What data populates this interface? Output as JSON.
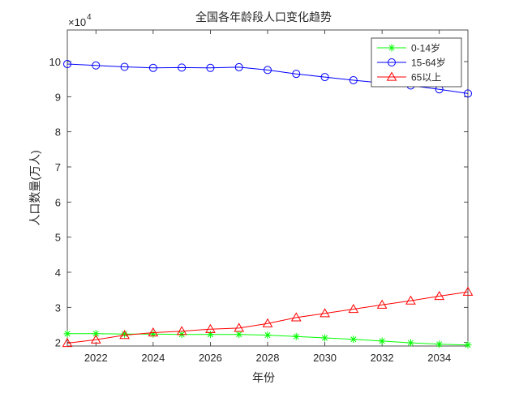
{
  "chart_data": {
    "type": "line",
    "title": "全国各年龄段人口变化趋势",
    "xlabel": "年份",
    "ylabel": "人口数量(万人)",
    "y_exponent_label": {
      "base": "×10",
      "exponent": "4"
    },
    "xlim": [
      2021,
      2035
    ],
    "ylim": [
      1.9,
      10.9
    ],
    "xticks": [
      2022,
      2024,
      2026,
      2028,
      2030,
      2032,
      2034
    ],
    "xtick_labels": [
      "2022",
      "2024",
      "2026",
      "2028",
      "2030",
      "2032",
      "2034"
    ],
    "yticks": [
      2,
      3,
      4,
      5,
      6,
      7,
      8,
      9,
      10
    ],
    "ytick_labels": [
      "2",
      "3",
      "4",
      "5",
      "6",
      "7",
      "8",
      "9",
      "10"
    ],
    "grid": false,
    "legend_position": "top-right",
    "x": [
      2021,
      2022,
      2023,
      2024,
      2025,
      2026,
      2027,
      2028,
      2029,
      2030,
      2031,
      2032,
      2033,
      2034,
      2035
    ],
    "series": [
      {
        "name": "0-14岁",
        "color": "#00ff00",
        "marker": "asterisk",
        "values": [
          2.25,
          2.25,
          2.24,
          2.24,
          2.23,
          2.23,
          2.23,
          2.21,
          2.17,
          2.13,
          2.09,
          2.04,
          1.99,
          1.95,
          1.93
        ]
      },
      {
        "name": "15-64岁",
        "color": "#0000ff",
        "marker": "circle",
        "values": [
          9.93,
          9.89,
          9.85,
          9.82,
          9.83,
          9.82,
          9.84,
          9.76,
          9.65,
          9.56,
          9.47,
          9.39,
          9.32,
          9.21,
          9.09
        ]
      },
      {
        "name": "65以上",
        "color": "#ff0000",
        "marker": "triangle",
        "values": [
          1.98,
          2.08,
          2.21,
          2.28,
          2.32,
          2.38,
          2.41,
          2.54,
          2.71,
          2.83,
          2.95,
          3.07,
          3.19,
          3.32,
          3.44
        ]
      }
    ]
  }
}
